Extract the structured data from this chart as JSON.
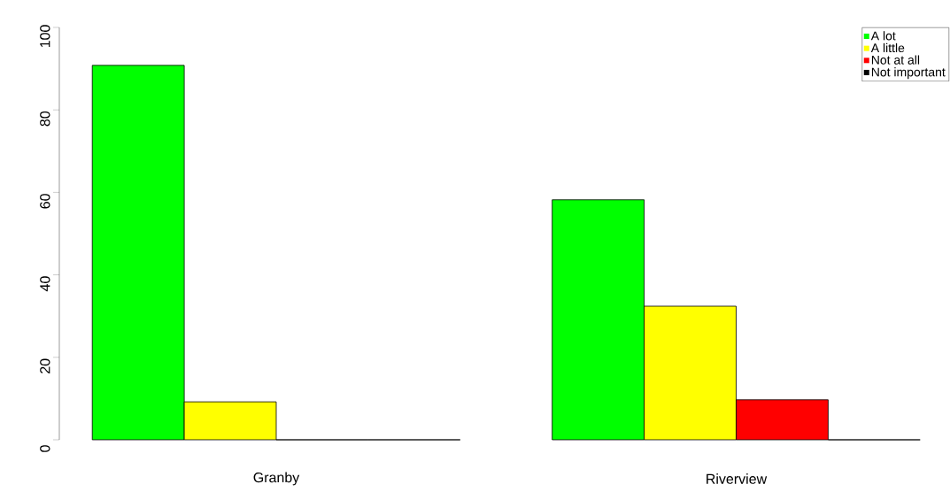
{
  "chart_data": {
    "type": "bar",
    "categories": [
      "Granby",
      "Riverview"
    ],
    "series": [
      {
        "name": "A lot",
        "color": "#00ff00",
        "values": [
          90.8,
          58.2
        ]
      },
      {
        "name": "A little",
        "color": "#ffff00",
        "values": [
          9.2,
          32.4
        ]
      },
      {
        "name": "Not at all",
        "color": "#ff0000",
        "values": [
          0,
          9.7
        ]
      },
      {
        "name": "Not important",
        "color": "#000000",
        "values": [
          0,
          0
        ]
      }
    ],
    "ylim": [
      0,
      100
    ],
    "yticks": [
      0,
      20,
      40,
      60,
      80,
      100
    ],
    "legend": "top right"
  }
}
